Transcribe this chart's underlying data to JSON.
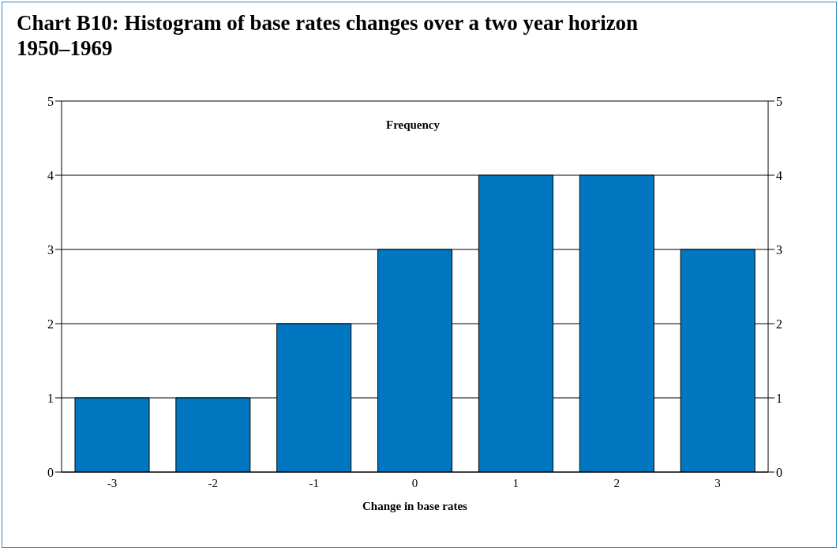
{
  "chart_data": {
    "type": "bar",
    "title": "Chart B10: Histogram of base rates changes over a two year horizon 1950–1969",
    "xlabel": "Change in base rates",
    "ylabel": "Frequency",
    "categories": [
      "-3",
      "-2",
      "-1",
      "0",
      "1",
      "2",
      "3"
    ],
    "values": [
      1,
      1,
      2,
      3,
      4,
      4,
      3
    ],
    "color": "#0077c0",
    "ylim": [
      0,
      5
    ],
    "yticks": [
      0,
      1,
      2,
      3,
      4,
      5
    ],
    "y2lim": [
      0,
      5
    ],
    "y2ticks": [
      0,
      1,
      2,
      3,
      4,
      5
    ],
    "grid": "y"
  }
}
